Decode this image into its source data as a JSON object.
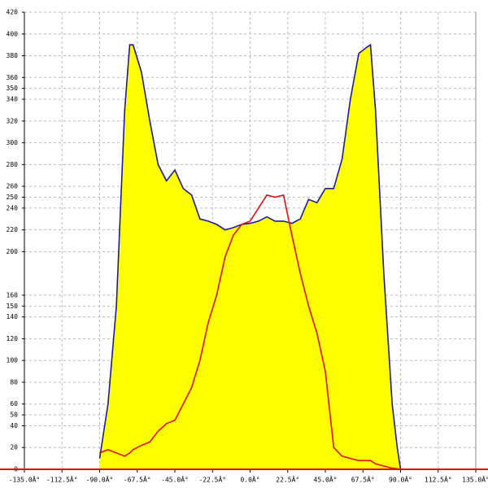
{
  "chart_data": {
    "type": "area-line",
    "x": [
      -90,
      -85,
      -80,
      -75,
      -72,
      -70,
      -65,
      -60,
      -55,
      -50,
      -45,
      -40,
      -35,
      -30,
      -25,
      -20,
      -15,
      -10,
      -5,
      0,
      5,
      10,
      15,
      20,
      25,
      30,
      35,
      40,
      45,
      50,
      55,
      60,
      65,
      70,
      72,
      75,
      80,
      85,
      88,
      90
    ],
    "series": [
      {
        "color": "#1a1aa8",
        "fill": "#ffff00",
        "filled": true,
        "values": [
          10,
          60,
          150,
          330,
          390,
          390,
          365,
          320,
          280,
          265,
          275,
          258,
          252,
          230,
          228,
          225,
          220,
          222,
          225,
          226,
          228,
          232,
          228,
          228,
          226,
          230,
          248,
          245,
          258,
          258,
          285,
          340,
          382,
          388,
          390,
          330,
          180,
          60,
          20,
          0
        ]
      },
      {
        "color": "#e01010",
        "filled": false,
        "values": [
          15,
          18,
          15,
          12,
          15,
          18,
          22,
          25,
          35,
          42,
          45,
          60,
          75,
          100,
          135,
          160,
          195,
          215,
          225,
          228,
          240,
          252,
          250,
          252,
          215,
          180,
          150,
          125,
          90,
          20,
          12,
          10,
          8,
          8,
          8,
          5,
          3,
          1,
          0.5,
          0
        ]
      }
    ],
    "xlim": [
      -135,
      135
    ],
    "ylim": [
      0,
      420
    ],
    "xticks": [
      {
        "value": -135,
        "label": "-135.0Â°"
      },
      {
        "value": -112.5,
        "label": "-112.5Â°"
      },
      {
        "value": -90,
        "label": "-90.0Â°"
      },
      {
        "value": -67.5,
        "label": "-67.5Â°"
      },
      {
        "value": -45,
        "label": "-45.0Â°"
      },
      {
        "value": -22.5,
        "label": "-22.5Â°"
      },
      {
        "value": 0,
        "label": "0.0Â°"
      },
      {
        "value": 22.5,
        "label": "22.5Â°"
      },
      {
        "value": 45,
        "label": "45.0Â°"
      },
      {
        "value": 67.5,
        "label": "67.5Â°"
      },
      {
        "value": 90,
        "label": "90.0Â°"
      },
      {
        "value": 112.5,
        "label": "112.5Â°"
      },
      {
        "value": 135,
        "label": "135.0Â°"
      }
    ],
    "yticks": [
      0,
      20,
      40,
      50,
      60,
      80,
      100,
      120,
      140,
      150,
      160,
      200,
      220,
      240,
      250,
      260,
      280,
      300,
      320,
      340,
      350,
      360,
      380,
      400,
      420
    ],
    "grid": true,
    "baseline_color": "#e01010"
  }
}
